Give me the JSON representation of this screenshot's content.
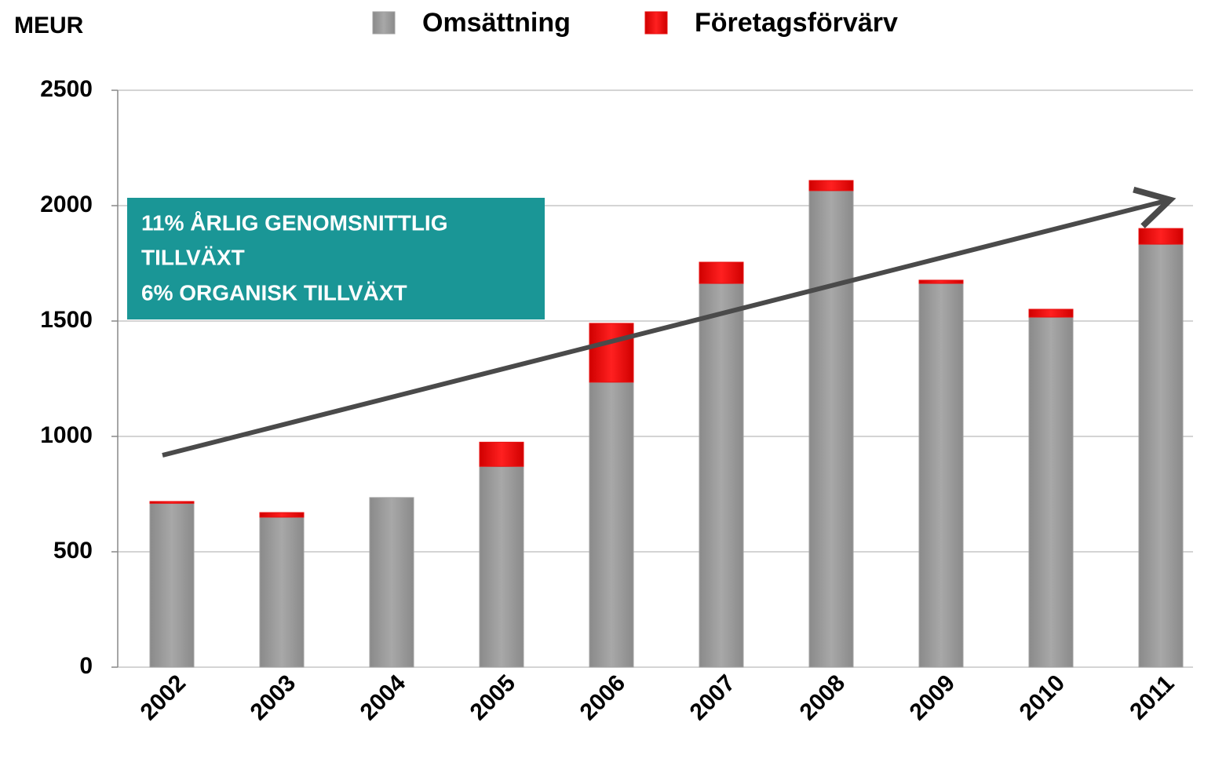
{
  "chart_data": {
    "type": "stacked_bar",
    "y_label": "MEUR",
    "annotation": [
      "11% ÅRLIG GENOMSNITTLIG",
      "TILLVÄXT",
      "6% ORGANISK TILLVÄXT"
    ],
    "categories": [
      "2002",
      "2003",
      "2004",
      "2005",
      "2006",
      "2007",
      "2008",
      "2009",
      "2010",
      "2011"
    ],
    "series": [
      {
        "name": "Omsättning",
        "color": "#a0a0a0",
        "values": [
          710,
          650,
          735,
          870,
          1235,
          1663,
          2065,
          1663,
          1517,
          1833
        ]
      },
      {
        "name": "Företagsförvärv",
        "color": "#e81010",
        "values": [
          8,
          20,
          0,
          105,
          255,
          92,
          44,
          14,
          34,
          68
        ]
      }
    ],
    "ylim": [
      0,
      2500
    ],
    "yticks": [
      0,
      500,
      1000,
      1500,
      2000,
      2500
    ],
    "grid": true
  }
}
